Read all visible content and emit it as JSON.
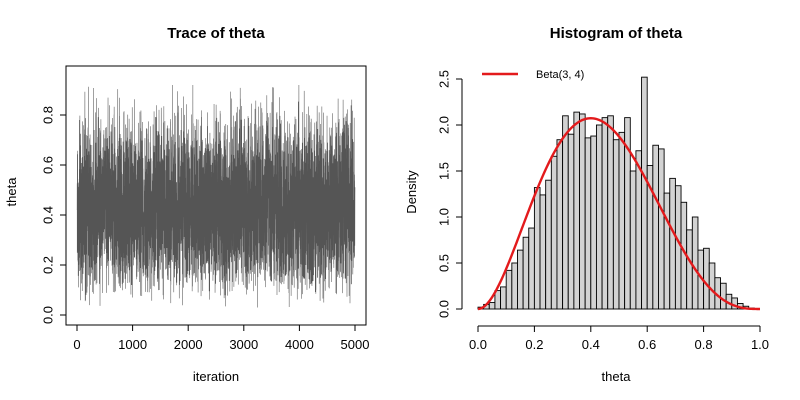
{
  "chart_data": [
    {
      "type": "line",
      "title": "Trace of theta",
      "xlabel": "iteration",
      "ylabel": "theta",
      "xlim": [
        0,
        5000
      ],
      "ylim": [
        0,
        0.95
      ],
      "xticks": [
        0,
        1000,
        2000,
        3000,
        4000,
        5000
      ],
      "xtick_labels": [
        "0",
        "1000",
        "2000",
        "3000",
        "4000",
        "5000"
      ],
      "yticks": [
        0.0,
        0.2,
        0.4,
        0.6,
        0.8
      ],
      "ytick_labels": [
        "0.0",
        "0.2",
        "0.4",
        "0.6",
        "0.8"
      ],
      "series": [
        {
          "name": "theta",
          "color": "#555555",
          "n_iterations": 5000,
          "distribution": "Beta(3, 4)",
          "min": 0.02,
          "max": 0.92
        }
      ]
    },
    {
      "type": "bar",
      "title": "Histogram of theta",
      "xlabel": "theta",
      "ylabel": "Density",
      "xlim": [
        0,
        1
      ],
      "ylim": [
        0,
        2.6
      ],
      "xticks": [
        0.0,
        0.2,
        0.4,
        0.6,
        0.8,
        1.0
      ],
      "xtick_labels": [
        "0.0",
        "0.2",
        "0.4",
        "0.6",
        "0.8",
        "1.0"
      ],
      "yticks": [
        0.0,
        0.5,
        1.0,
        1.5,
        2.0,
        2.5
      ],
      "ytick_labels": [
        "0.0",
        "0.5",
        "1.0",
        "1.5",
        "2.0",
        "2.5"
      ],
      "bin_width": 0.02,
      "bin_start": 0.0,
      "bar_fill": "#d3d3d3",
      "densities": [
        0.02,
        0.05,
        0.07,
        0.2,
        0.24,
        0.42,
        0.5,
        0.64,
        0.78,
        0.88,
        1.32,
        1.24,
        1.4,
        1.66,
        1.84,
        2.1,
        1.9,
        2.14,
        2.12,
        1.86,
        1.88,
        2.0,
        2.08,
        2.1,
        1.84,
        1.92,
        2.08,
        1.5,
        1.72,
        2.52,
        1.56,
        1.78,
        1.74,
        1.26,
        1.42,
        1.34,
        1.16,
        0.86,
        1.0,
        0.64,
        0.66,
        0.5,
        0.34,
        0.28,
        0.16,
        0.12,
        0.06,
        0.03,
        0.01,
        0.0
      ],
      "curve": {
        "name": "Beta(3, 4)",
        "color": "#e31a1c",
        "alpha": 3,
        "beta": 4
      },
      "legend": {
        "position": "top-left",
        "entries": [
          "Beta(3, 4)"
        ]
      }
    }
  ]
}
